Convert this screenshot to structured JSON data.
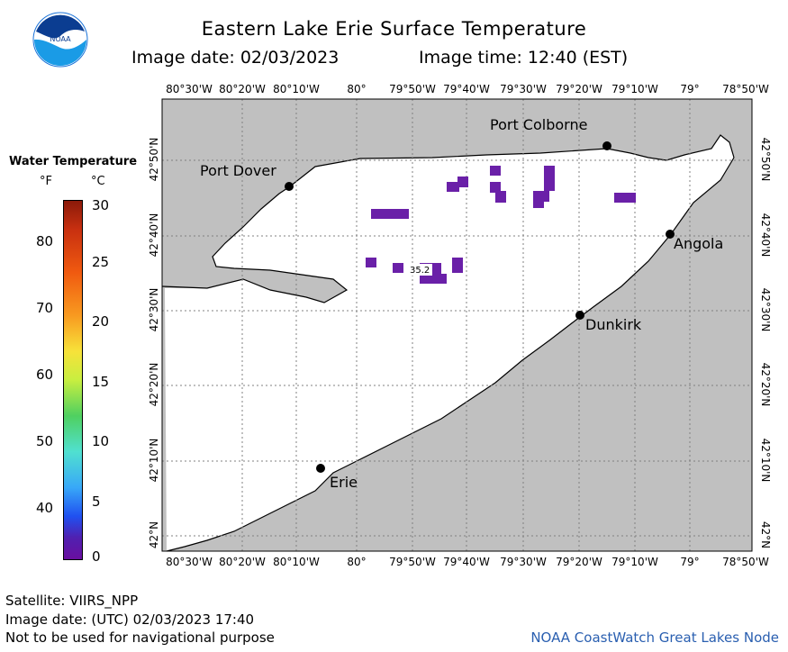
{
  "header": {
    "title": "Eastern Lake Erie Surface Temperature",
    "image_date": "Image date: 02/03/2023",
    "image_time": "Image time: 12:40 (EST)"
  },
  "map": {
    "lon_labels": [
      "80°30'W",
      "80°20'W",
      "80°10'W",
      "80°",
      "79°50'W",
      "79°40'W",
      "79°30'W",
      "79°20'W",
      "79°10'W",
      "79°",
      "78°50'W"
    ],
    "lat_labels": [
      "42°50'N",
      "42°40'N",
      "42°30'N",
      "42°20'N",
      "42°10'N",
      "42°N"
    ],
    "cities": [
      {
        "name": "Port Dover"
      },
      {
        "name": "Port Colborne"
      },
      {
        "name": "Angola"
      },
      {
        "name": "Dunkirk"
      },
      {
        "name": "Erie"
      }
    ],
    "annotation": "35.2",
    "colors": {
      "land": "#c0c0c0",
      "water": "#ffffff",
      "cold_water": "#6a20a8",
      "grid": "#808080"
    }
  },
  "legend": {
    "title": "Water Temperature",
    "unit_f": "°F",
    "unit_c": "°C",
    "f_ticks": [
      "80",
      "70",
      "60",
      "50",
      "40"
    ],
    "c_ticks": [
      "30",
      "25",
      "20",
      "15",
      "10",
      "5",
      "0"
    ]
  },
  "footer": {
    "satellite": "Satellite: VIIRS_NPP",
    "utc_date": "Image date: (UTC) 02/03/2023  17:40",
    "disclaimer": "Not to be used for navigational purpose",
    "credit": "NOAA CoastWatch Great Lakes Node"
  }
}
